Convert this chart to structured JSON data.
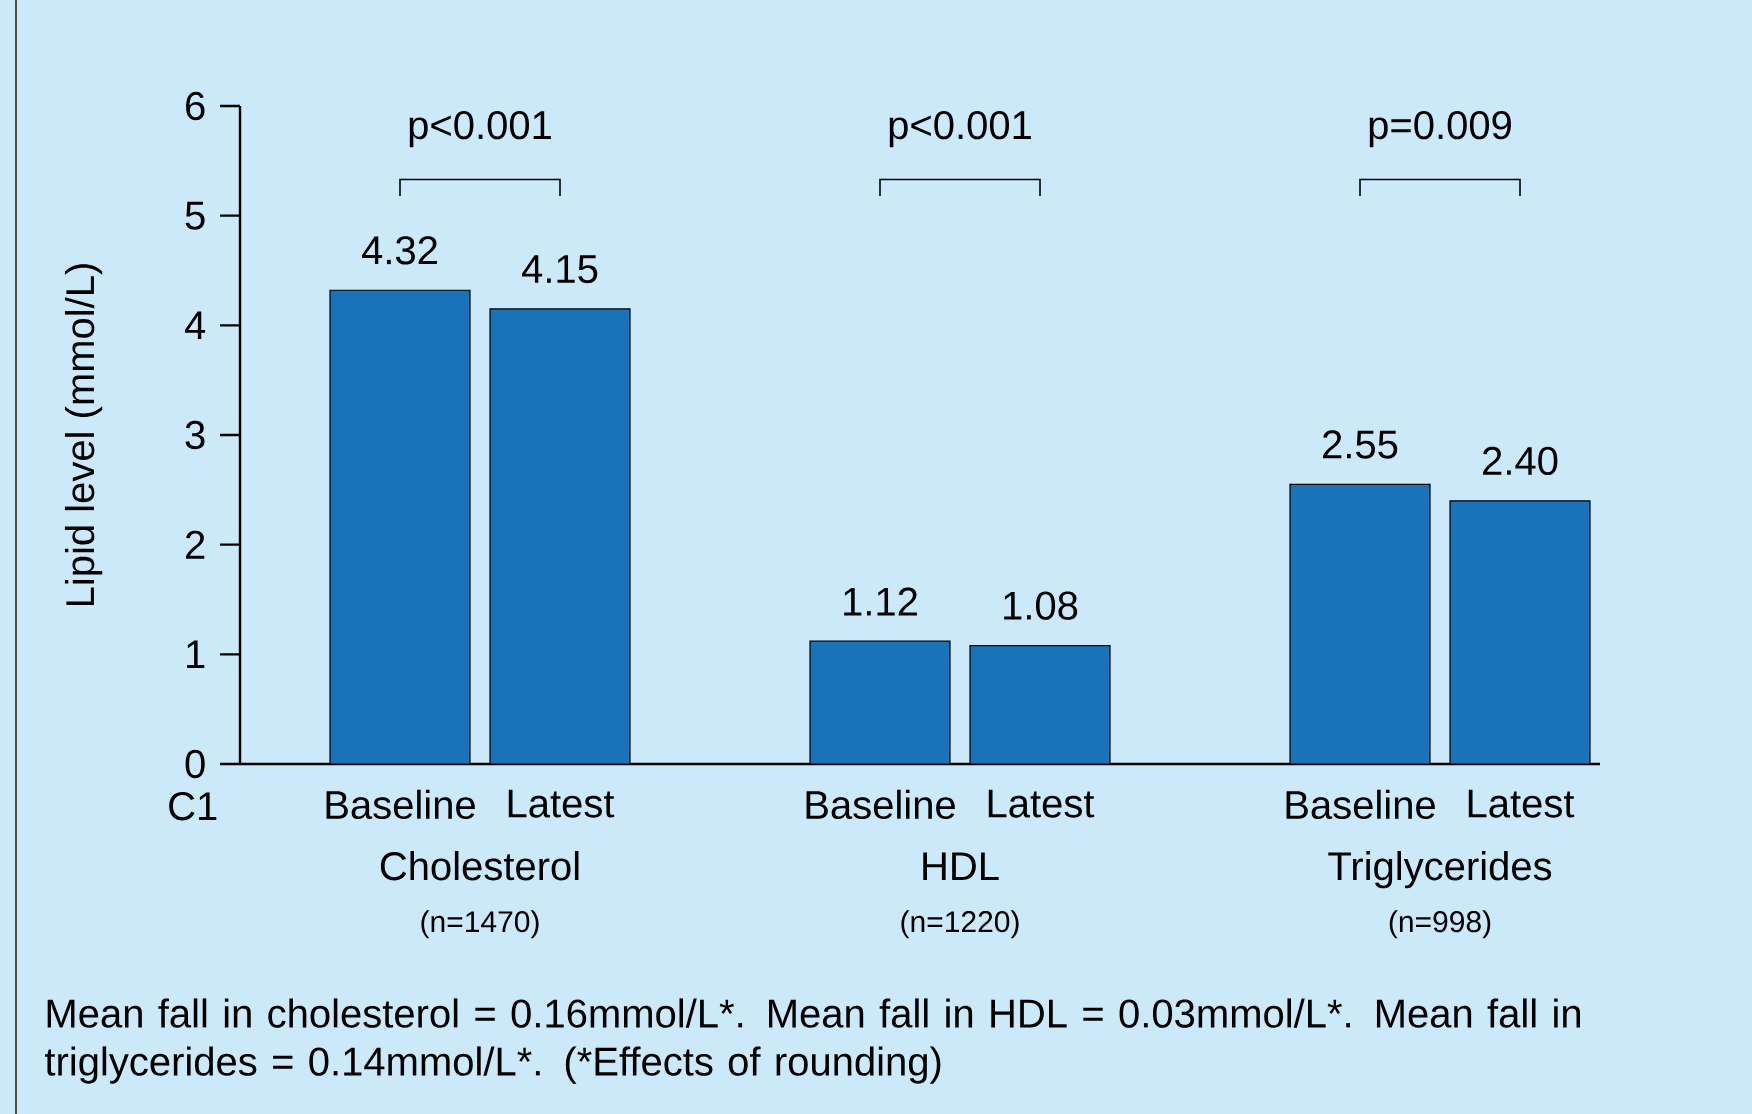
{
  "chart_data": {
    "type": "bar",
    "ylabel": "Lipid level (mmol/L)",
    "categories": [
      "Baseline",
      "Latest",
      null,
      "Baseline",
      "Latest",
      null,
      "Baseline",
      "Latest"
    ],
    "values": [
      4.32,
      4.15,
      null,
      1.12,
      1.08,
      null,
      2.55,
      2.4
    ],
    "value_labels": [
      "4.32",
      "4.15",
      null,
      "1.12",
      "1.08",
      null,
      "2.55",
      "2.40"
    ],
    "color": "#1a72b8",
    "ylim": [
      0,
      6
    ],
    "yticks": [
      0,
      1,
      2,
      3,
      4,
      5,
      6
    ],
    "annotations": [
      "C1",
      "Cholesterol",
      "(n=1470)",
      "HDL",
      "(n=1220)",
      "Triglycerides",
      "(n=998)",
      "p<0.001",
      "p<0.001",
      "p=0.009",
      "Mean fall in cholesterol = 0.16mmol/L*. Mean fall in HDL = 0.03mmol/L*. Mean fall in triglycerides = 0.14mmol/L*. (*Effects of rounding)"
    ]
  }
}
